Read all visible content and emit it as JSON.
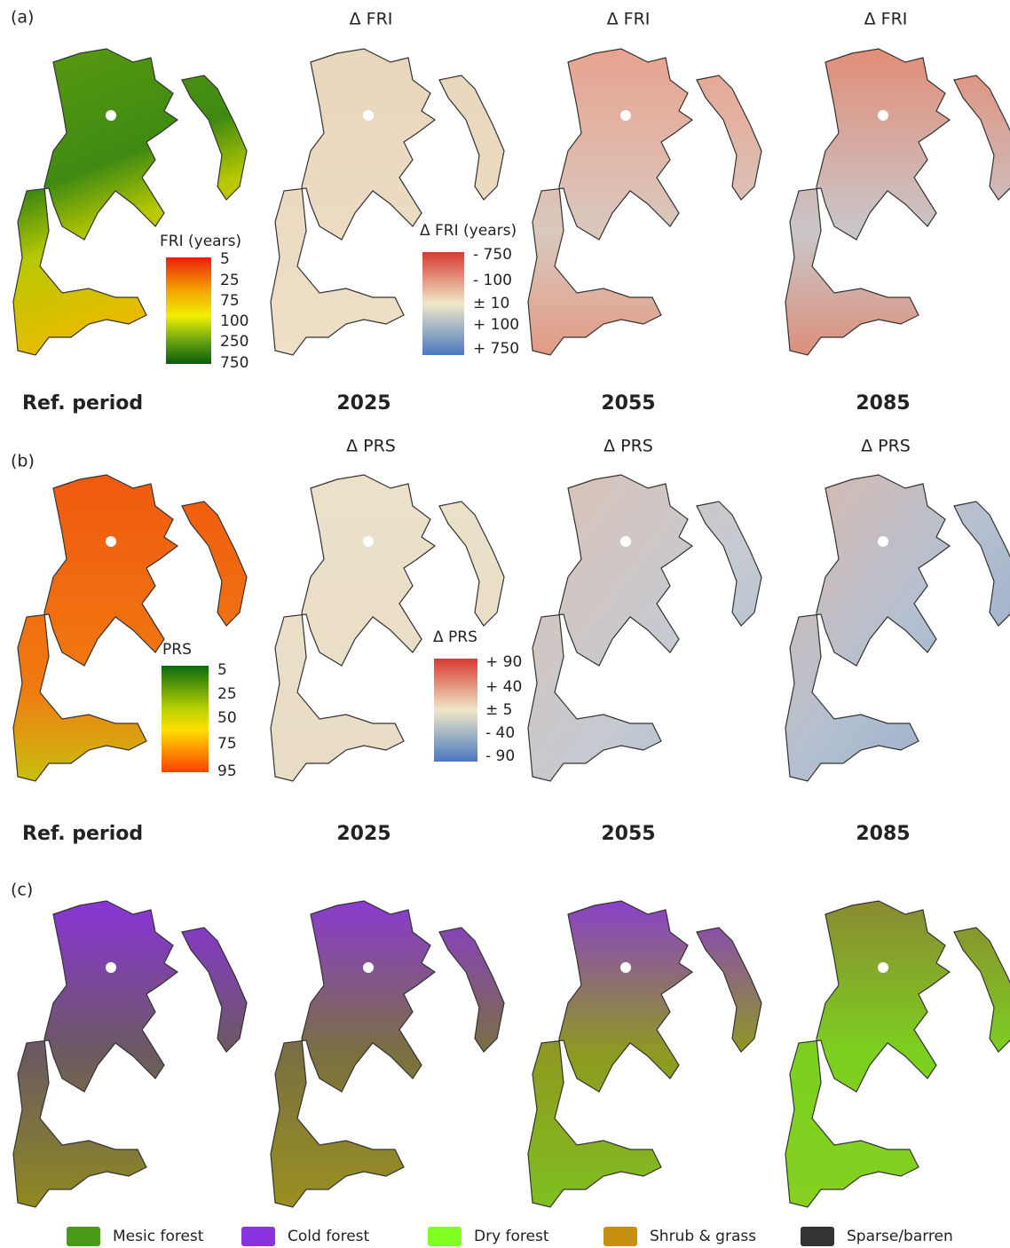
{
  "panels": [
    {
      "label": "(a)",
      "column_titles": [
        "Δ FRI",
        "Δ FRI",
        "Δ FRI"
      ],
      "periods": [
        "Ref. period",
        "2025",
        "2055",
        "2085"
      ],
      "legends": [
        {
          "title": "FRI (years)",
          "labels": [
            "5",
            "25",
            "75",
            "100",
            "250",
            "750"
          ]
        },
        {
          "title": "Δ FRI (years)",
          "labels": [
            "- 750",
            "- 100",
            "± 10",
            "+ 100",
            "+ 750"
          ]
        }
      ]
    },
    {
      "label": "(b)",
      "column_titles": [
        "Δ PRS",
        "Δ PRS",
        "Δ PRS"
      ],
      "periods": [
        "Ref. period",
        "2025",
        "2055",
        "2085"
      ],
      "legends": [
        {
          "title": "PRS",
          "labels": [
            "5",
            "25",
            "50",
            "75",
            "95"
          ]
        },
        {
          "title": "Δ PRS",
          "labels": [
            "+ 90",
            "+ 40",
            "± 5",
            "- 40",
            "- 90"
          ]
        }
      ]
    },
    {
      "label": "(c)"
    }
  ],
  "legend": {
    "items": [
      "Mesic forest",
      "Cold forest",
      "Dry forest",
      "Shrub & grass",
      "Sparse/barren"
    ]
  }
}
